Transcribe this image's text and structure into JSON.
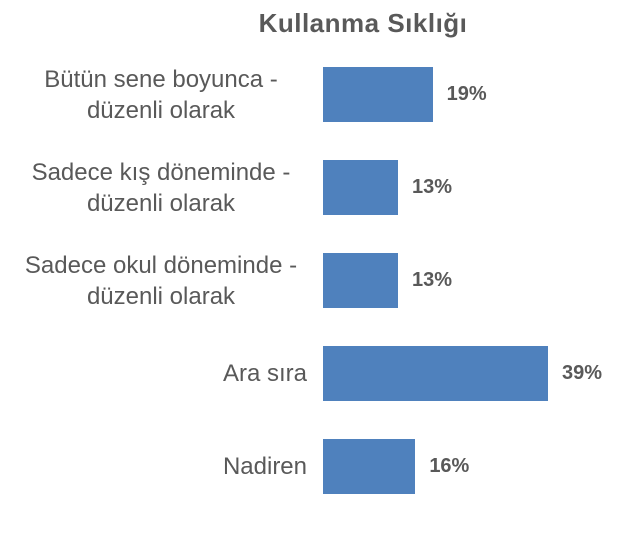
{
  "chart": {
    "title": "Kullanma Sıklığı"
  },
  "chart_data": {
    "type": "bar",
    "orientation": "horizontal",
    "title": "Kullanma Sıklığı",
    "categories": [
      "Bütün sene boyunca - düzenli olarak",
      "Sadece kış döneminde - düzenli olarak",
      "Sadece okul döneminde - düzenli olarak",
      "Ara sıra",
      "Nadiren"
    ],
    "values": [
      19,
      13,
      13,
      39,
      16
    ],
    "value_labels": [
      "19%",
      "13%",
      "13%",
      "39%",
      "16%"
    ],
    "unit": "%",
    "xlim": [
      0,
      40
    ],
    "grid": false,
    "legend": "none",
    "axis_lines": "none",
    "bar_color": "#4F81BD",
    "bar_border_color": "#FFFFFF",
    "text_color": "#595959"
  }
}
